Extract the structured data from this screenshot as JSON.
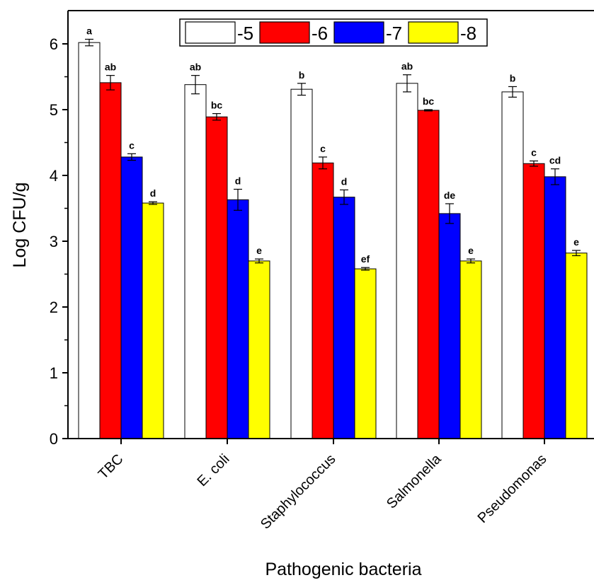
{
  "chart_data": {
    "type": "bar",
    "xlabel": "Pathogenic bacteria",
    "ylabel": "Log CFU/g",
    "ylim": [
      0,
      6.5
    ],
    "yticks": [
      0,
      1,
      2,
      3,
      4,
      5,
      6
    ],
    "categories": [
      "TBC",
      "E. coli",
      "Staphylococcus",
      "Salmonella",
      "Pseudomonas"
    ],
    "legend_position": "top",
    "series": [
      {
        "name": "-5",
        "color": "#ffffff",
        "values": [
          6.02,
          5.38,
          5.31,
          5.4,
          5.27
        ],
        "errors": [
          0.05,
          0.14,
          0.09,
          0.13,
          0.08
        ],
        "labels": [
          "a",
          "ab",
          "b",
          "ab",
          "b"
        ]
      },
      {
        "name": "-6",
        "color": "#ff0000",
        "values": [
          5.41,
          4.89,
          4.19,
          4.99,
          4.18
        ],
        "errors": [
          0.11,
          0.05,
          0.09,
          0.01,
          0.04
        ],
        "labels": [
          "ab",
          "bc",
          "c",
          "bc",
          "c"
        ]
      },
      {
        "name": "-7",
        "color": "#0000ff",
        "values": [
          4.28,
          3.63,
          3.67,
          3.42,
          3.98
        ],
        "errors": [
          0.05,
          0.16,
          0.11,
          0.15,
          0.12
        ],
        "labels": [
          "c",
          "d",
          "d",
          "de",
          "cd"
        ]
      },
      {
        "name": "-8",
        "color": "#ffff00",
        "values": [
          3.58,
          2.7,
          2.58,
          2.7,
          2.82
        ],
        "errors": [
          0.02,
          0.03,
          0.02,
          0.03,
          0.04
        ],
        "labels": [
          "d",
          "e",
          "ef",
          "e",
          "e"
        ]
      }
    ]
  }
}
